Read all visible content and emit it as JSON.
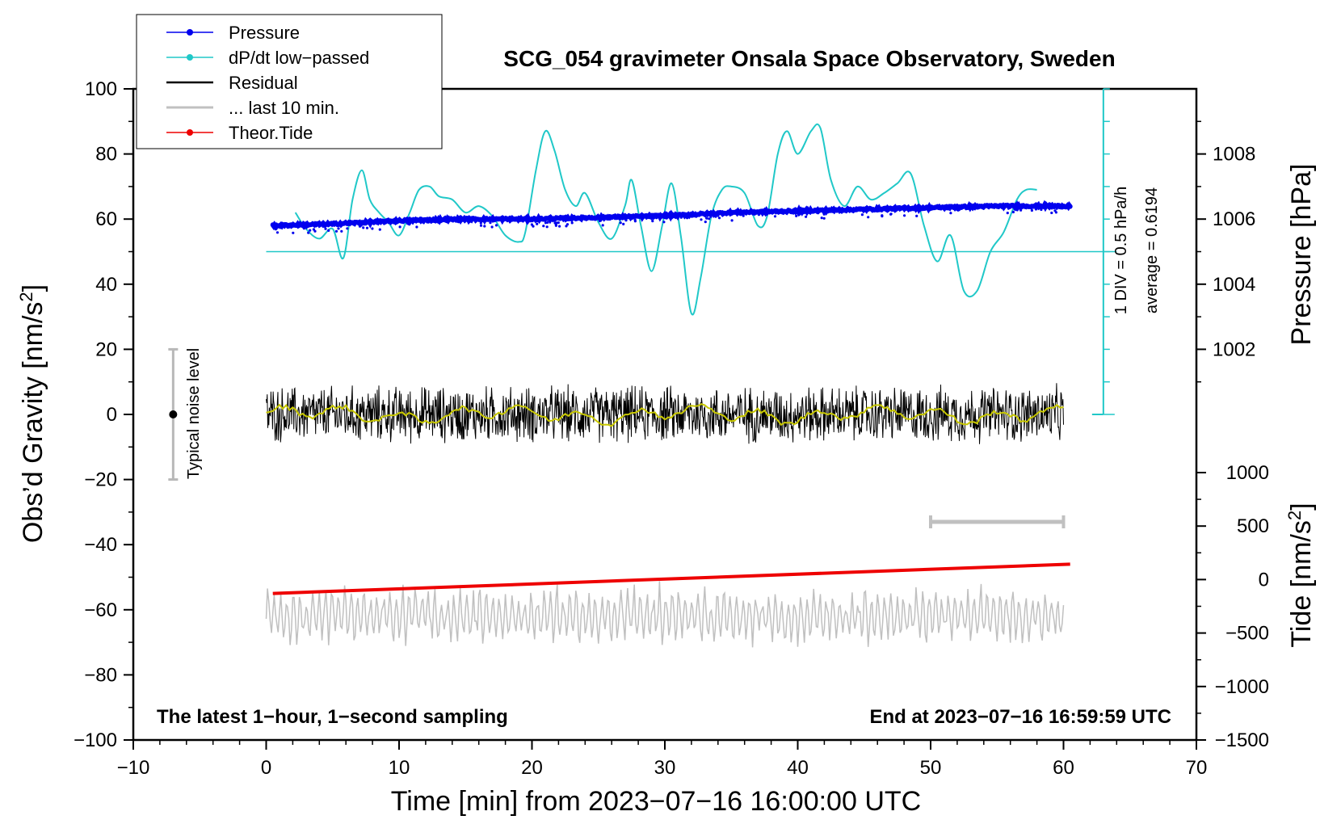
{
  "chart_data": {
    "type": "line",
    "title": "SCG_054 gravimeter Onsala Space Observatory, Sweden",
    "xlabel": "Time [min] from 2023−07−16 16:00:00 UTC",
    "ylabel_left": "Obs’d Gravity [nm/s",
    "ylabel_left_sup": "2",
    "ylabel_left_end": "]",
    "ylabel_right_pressure": "Pressure [hPa]",
    "ylabel_right_tide": "Tide [nm/s",
    "ylabel_right_tide_sup": "2",
    "ylabel_right_tide_end": "]",
    "xlim": [
      -10,
      70
    ],
    "ylim": [
      -100,
      100
    ],
    "x_ticks": [
      {
        "v": -10,
        "label": "−10"
      },
      {
        "v": 0,
        "label": "0"
      },
      {
        "v": 10,
        "label": "10"
      },
      {
        "v": 20,
        "label": "20"
      },
      {
        "v": 30,
        "label": "30"
      },
      {
        "v": 40,
        "label": "40"
      },
      {
        "v": 50,
        "label": "50"
      },
      {
        "v": 60,
        "label": "60"
      },
      {
        "v": 70,
        "label": "70"
      }
    ],
    "y_ticks": [
      {
        "v": 100,
        "label": "100"
      },
      {
        "v": 80,
        "label": "80"
      },
      {
        "v": 60,
        "label": "60"
      },
      {
        "v": 40,
        "label": "40"
      },
      {
        "v": 20,
        "label": "20"
      },
      {
        "v": 0,
        "label": "0"
      },
      {
        "v": -20,
        "label": "−20"
      },
      {
        "v": -40,
        "label": "−40"
      },
      {
        "v": -60,
        "label": "−60"
      },
      {
        "v": -80,
        "label": "−80"
      },
      {
        "v": -100,
        "label": "−100"
      }
    ],
    "pressure_axis": {
      "range_hPa": [
        1000,
        1010
      ],
      "maps_to_gravity": [
        0,
        100
      ],
      "ticks": [
        {
          "v": 1002,
          "label": "1002"
        },
        {
          "v": 1004,
          "label": "1004"
        },
        {
          "v": 1006,
          "label": "1006"
        },
        {
          "v": 1008,
          "label": "1008"
        }
      ]
    },
    "tide_axis": {
      "range": [
        -1500,
        1500
      ],
      "ticks": [
        {
          "v": 1000,
          "label": "1000"
        },
        {
          "v": 500,
          "label": "500"
        },
        {
          "v": 0,
          "label": "0"
        },
        {
          "v": -500,
          "label": "−500"
        },
        {
          "v": -1000,
          "label": "−1000"
        },
        {
          "v": -1500,
          "label": "−1500"
        }
      ]
    },
    "legend": [
      {
        "label": "Pressure",
        "color": "#0000ee",
        "marker": true
      },
      {
        "label": "dP/dt low−passed",
        "color": "#20c8c8",
        "marker": true
      },
      {
        "label": "Residual",
        "color": "#000000",
        "marker": false
      },
      {
        "label": "... last 10 min.",
        "color": "#c0c0c0",
        "marker": false
      },
      {
        "label": "Theor.Tide",
        "color": "#ee0000",
        "marker": true
      }
    ],
    "series": [
      {
        "name": "Pressure",
        "color": "#0000ee",
        "unit": "hPa",
        "x": [
          0.5,
          5,
          10,
          15,
          20,
          25,
          30,
          35,
          40,
          45,
          50,
          55,
          60.5
        ],
        "values": [
          1005.8,
          1005.85,
          1005.95,
          1006.0,
          1006.0,
          1006.05,
          1006.1,
          1006.2,
          1006.25,
          1006.3,
          1006.35,
          1006.4,
          1006.4
        ]
      },
      {
        "name": "dP/dt low−passed",
        "color": "#20c8c8",
        "unit": "gravity-axis units (1 DIV = 0.5 hPa/h)",
        "baseline": 50,
        "x": [
          2.2,
          3.0,
          4.0,
          5.0,
          5.8,
          6.5,
          7.2,
          7.8,
          8.5,
          9.2,
          10.0,
          10.8,
          11.5,
          12.3,
          13.0,
          14.0,
          15.0,
          16.0,
          17.0,
          18.0,
          19.0,
          19.5,
          20.3,
          21.0,
          21.7,
          22.5,
          23.3,
          24.0,
          25.0,
          26.0,
          27.0,
          27.5,
          28.2,
          29.0,
          29.8,
          30.5,
          31.2,
          32.0,
          32.7,
          33.5,
          34.3,
          35.0,
          36.0,
          37.0,
          37.7,
          38.5,
          39.2,
          40.0,
          41.0,
          41.7,
          42.5,
          43.5,
          44.5,
          45.5,
          46.5,
          47.5,
          48.5,
          49.5,
          50.5,
          51.5,
          52.5,
          53.5,
          54.5,
          55.5,
          56.5,
          57.2,
          58.0
        ],
        "values": [
          62,
          57,
          54,
          57,
          48,
          66,
          75,
          66,
          62,
          59,
          55,
          62,
          69,
          70,
          67,
          66,
          62,
          64,
          61,
          55,
          53,
          56,
          75,
          87,
          81,
          69,
          64,
          68,
          59,
          54,
          64,
          72,
          58,
          44,
          58,
          71,
          55,
          31,
          42,
          61,
          69,
          70,
          68,
          58,
          61,
          80,
          87,
          80,
          87,
          88,
          72,
          64,
          70,
          66,
          68,
          71,
          74,
          58,
          47,
          55,
          38,
          38,
          50,
          56,
          66,
          69,
          69
        ]
      },
      {
        "name": "Residual",
        "color": "#000000",
        "x_range": [
          0,
          60
        ],
        "amplitude": 10,
        "smoothed_color": "#c8c800"
      },
      {
        "name": "... last 10 min.",
        "color": "#c0c0c0",
        "x_range": [
          0,
          60
        ],
        "center": -62,
        "amplitude": 10
      },
      {
        "name": "Theor.Tide",
        "color": "#ee0000",
        "unit": "nm/s2",
        "x": [
          0.5,
          60.5
        ],
        "values": [
          -55,
          -46
        ]
      }
    ],
    "annotations": {
      "noise_label": "Typical noise level",
      "noise_bar": {
        "x": -7,
        "ymin": -20,
        "ymax": 20
      },
      "scale_label_1": "1 DIV = 0.5 hPa/h",
      "scale_label_2": "average = 0.6194",
      "scale_bar": {
        "x": 63,
        "ymin": 0,
        "ymax": 100,
        "division": 10
      },
      "ten_min_bar": {
        "x_start": 50,
        "x_end": 60,
        "y": -33
      },
      "bottom_left_note": "The latest 1−hour, 1−second sampling",
      "bottom_right_note": "End at 2023−07−16 16:59:59 UTC"
    }
  }
}
